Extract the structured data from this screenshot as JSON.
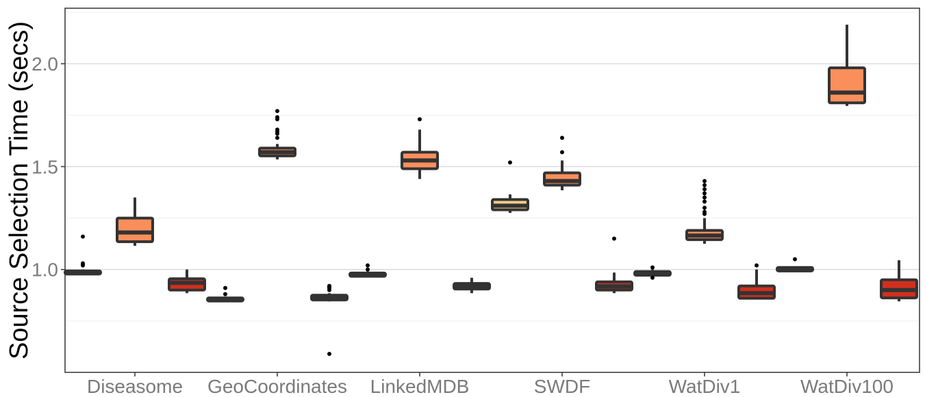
{
  "chart_data": {
    "type": "box",
    "title": "",
    "xlabel": "",
    "ylabel": "Source Selection Time (secs)",
    "ylim": [
      0.5,
      2.27
    ],
    "y_ticks": [
      "1.0",
      "1.5",
      "2.0"
    ],
    "grid": true,
    "categories": [
      "Diseasome",
      "GeoCoordinates",
      "LinkedMDB",
      "SWDF",
      "WatDiv1",
      "WatDiv100"
    ],
    "colors": [
      "#f5cd8a",
      "#fb8f5c",
      "#d32f1e"
    ],
    "groups": [
      {
        "category": "Diseasome",
        "boxes": [
          {
            "slot": 0,
            "min": 0.975,
            "q1": 0.978,
            "median": 0.985,
            "q3": 0.993,
            "max": 1.0,
            "outliers": [
              1.02,
              1.025,
              1.03,
              1.16
            ]
          },
          {
            "slot": 1,
            "min": 1.115,
            "q1": 1.135,
            "median": 1.18,
            "q3": 1.25,
            "max": 1.35,
            "outliers": []
          },
          {
            "slot": 2,
            "min": 0.885,
            "q1": 0.9,
            "median": 0.935,
            "q3": 0.955,
            "max": 1.0,
            "outliers": []
          }
        ]
      },
      {
        "category": "GeoCoordinates",
        "boxes": [
          {
            "slot": 0,
            "min": 0.842,
            "q1": 0.847,
            "median": 0.853,
            "q3": 0.862,
            "max": 0.868,
            "outliers": [
              0.88,
              0.91
            ]
          },
          {
            "slot": 1,
            "min": 1.535,
            "q1": 1.552,
            "median": 1.57,
            "q3": 1.59,
            "max": 1.61,
            "outliers": [
              1.64,
              1.66,
              1.67,
              1.68,
              1.73,
              1.74,
              1.77
            ]
          },
          {
            "slot": 2,
            "min": 0.845,
            "q1": 0.852,
            "median": 0.862,
            "q3": 0.875,
            "max": 0.885,
            "outliers": [
              0.9,
              0.91,
              0.915,
              0.92,
              0.59
            ]
          }
        ]
      },
      {
        "category": "LinkedMDB",
        "boxes": [
          {
            "slot": 0,
            "min": 0.965,
            "q1": 0.967,
            "median": 0.975,
            "q3": 0.983,
            "max": 0.99,
            "outliers": [
              1.0,
              1.02
            ]
          },
          {
            "slot": 1,
            "min": 1.44,
            "q1": 1.49,
            "median": 1.53,
            "q3": 1.57,
            "max": 1.68,
            "outliers": [
              1.73
            ]
          },
          {
            "slot": 2,
            "min": 0.885,
            "q1": 0.905,
            "median": 0.918,
            "q3": 0.932,
            "max": 0.96,
            "outliers": []
          }
        ]
      },
      {
        "category": "SWDF",
        "boxes": [
          {
            "slot": 0,
            "min": 1.275,
            "q1": 1.29,
            "median": 1.31,
            "q3": 1.34,
            "max": 1.365,
            "outliers": [
              1.52
            ]
          },
          {
            "slot": 1,
            "min": 1.385,
            "q1": 1.41,
            "median": 1.43,
            "q3": 1.47,
            "max": 1.53,
            "outliers": [
              1.57,
              1.64
            ]
          },
          {
            "slot": 2,
            "min": 0.885,
            "q1": 0.9,
            "median": 0.918,
            "q3": 0.94,
            "max": 0.985,
            "outliers": [
              1.15
            ]
          }
        ]
      },
      {
        "category": "WatDiv1",
        "boxes": [
          {
            "slot": 0,
            "min": 0.965,
            "q1": 0.972,
            "median": 0.982,
            "q3": 0.99,
            "max": 1.0,
            "outliers": [
              0.96,
              1.01
            ]
          },
          {
            "slot": 1,
            "min": 1.125,
            "q1": 1.145,
            "median": 1.165,
            "q3": 1.19,
            "max": 1.25,
            "outliers": [
              1.27,
              1.28,
              1.3,
              1.33,
              1.35,
              1.37,
              1.39,
              1.41,
              1.43
            ]
          },
          {
            "slot": 2,
            "min": 0.855,
            "q1": 0.86,
            "median": 0.885,
            "q3": 0.92,
            "max": 1.0,
            "outliers": [
              1.02
            ]
          }
        ]
      },
      {
        "category": "WatDiv100",
        "boxes": [
          {
            "slot": 0,
            "min": 0.99,
            "q1": 0.993,
            "median": 1.0,
            "q3": 1.01,
            "max": 1.015,
            "outliers": [
              1.05
            ]
          },
          {
            "slot": 1,
            "min": 1.795,
            "q1": 1.81,
            "median": 1.86,
            "q3": 1.98,
            "max": 2.19,
            "outliers": []
          },
          {
            "slot": 2,
            "min": 0.845,
            "q1": 0.862,
            "median": 0.9,
            "q3": 0.95,
            "max": 1.045,
            "outliers": []
          }
        ]
      }
    ]
  }
}
